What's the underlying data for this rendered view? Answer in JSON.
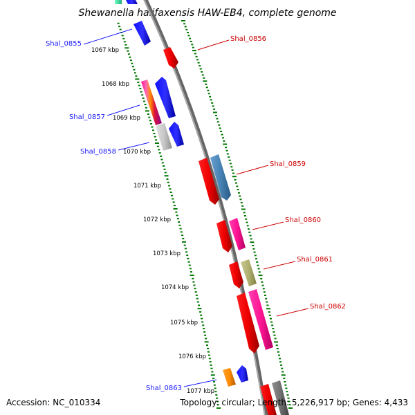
{
  "title": "Shewanella halifaxensis HAW-EB4, complete genome",
  "footer": {
    "accession": "Accession: NC_010334",
    "summary": "Topology: circular; Length: 5,226,917 bp; Genes: 4,433"
  },
  "kbp_labels": [
    "1067 kbp",
    "1068 kbp",
    "1069 kbp",
    "1070 kbp",
    "1071 kbp",
    "1072 kbp",
    "1073 kbp",
    "1074 kbp",
    "1075 kbp",
    "1076 kbp",
    "1077 kbp"
  ],
  "genes_left": [
    "Shal_0855",
    "Shal_0857",
    "Shal_0858",
    "Shal_0863"
  ],
  "genes_right": [
    "Shal_0856",
    "Shal_0859",
    "Shal_0860",
    "Shal_0861",
    "Shal_0862"
  ],
  "colors": {
    "backbone": "#808080",
    "ticks": "#007700",
    "left_labels": "#1a1aff",
    "right_labels": "#cc0000"
  }
}
